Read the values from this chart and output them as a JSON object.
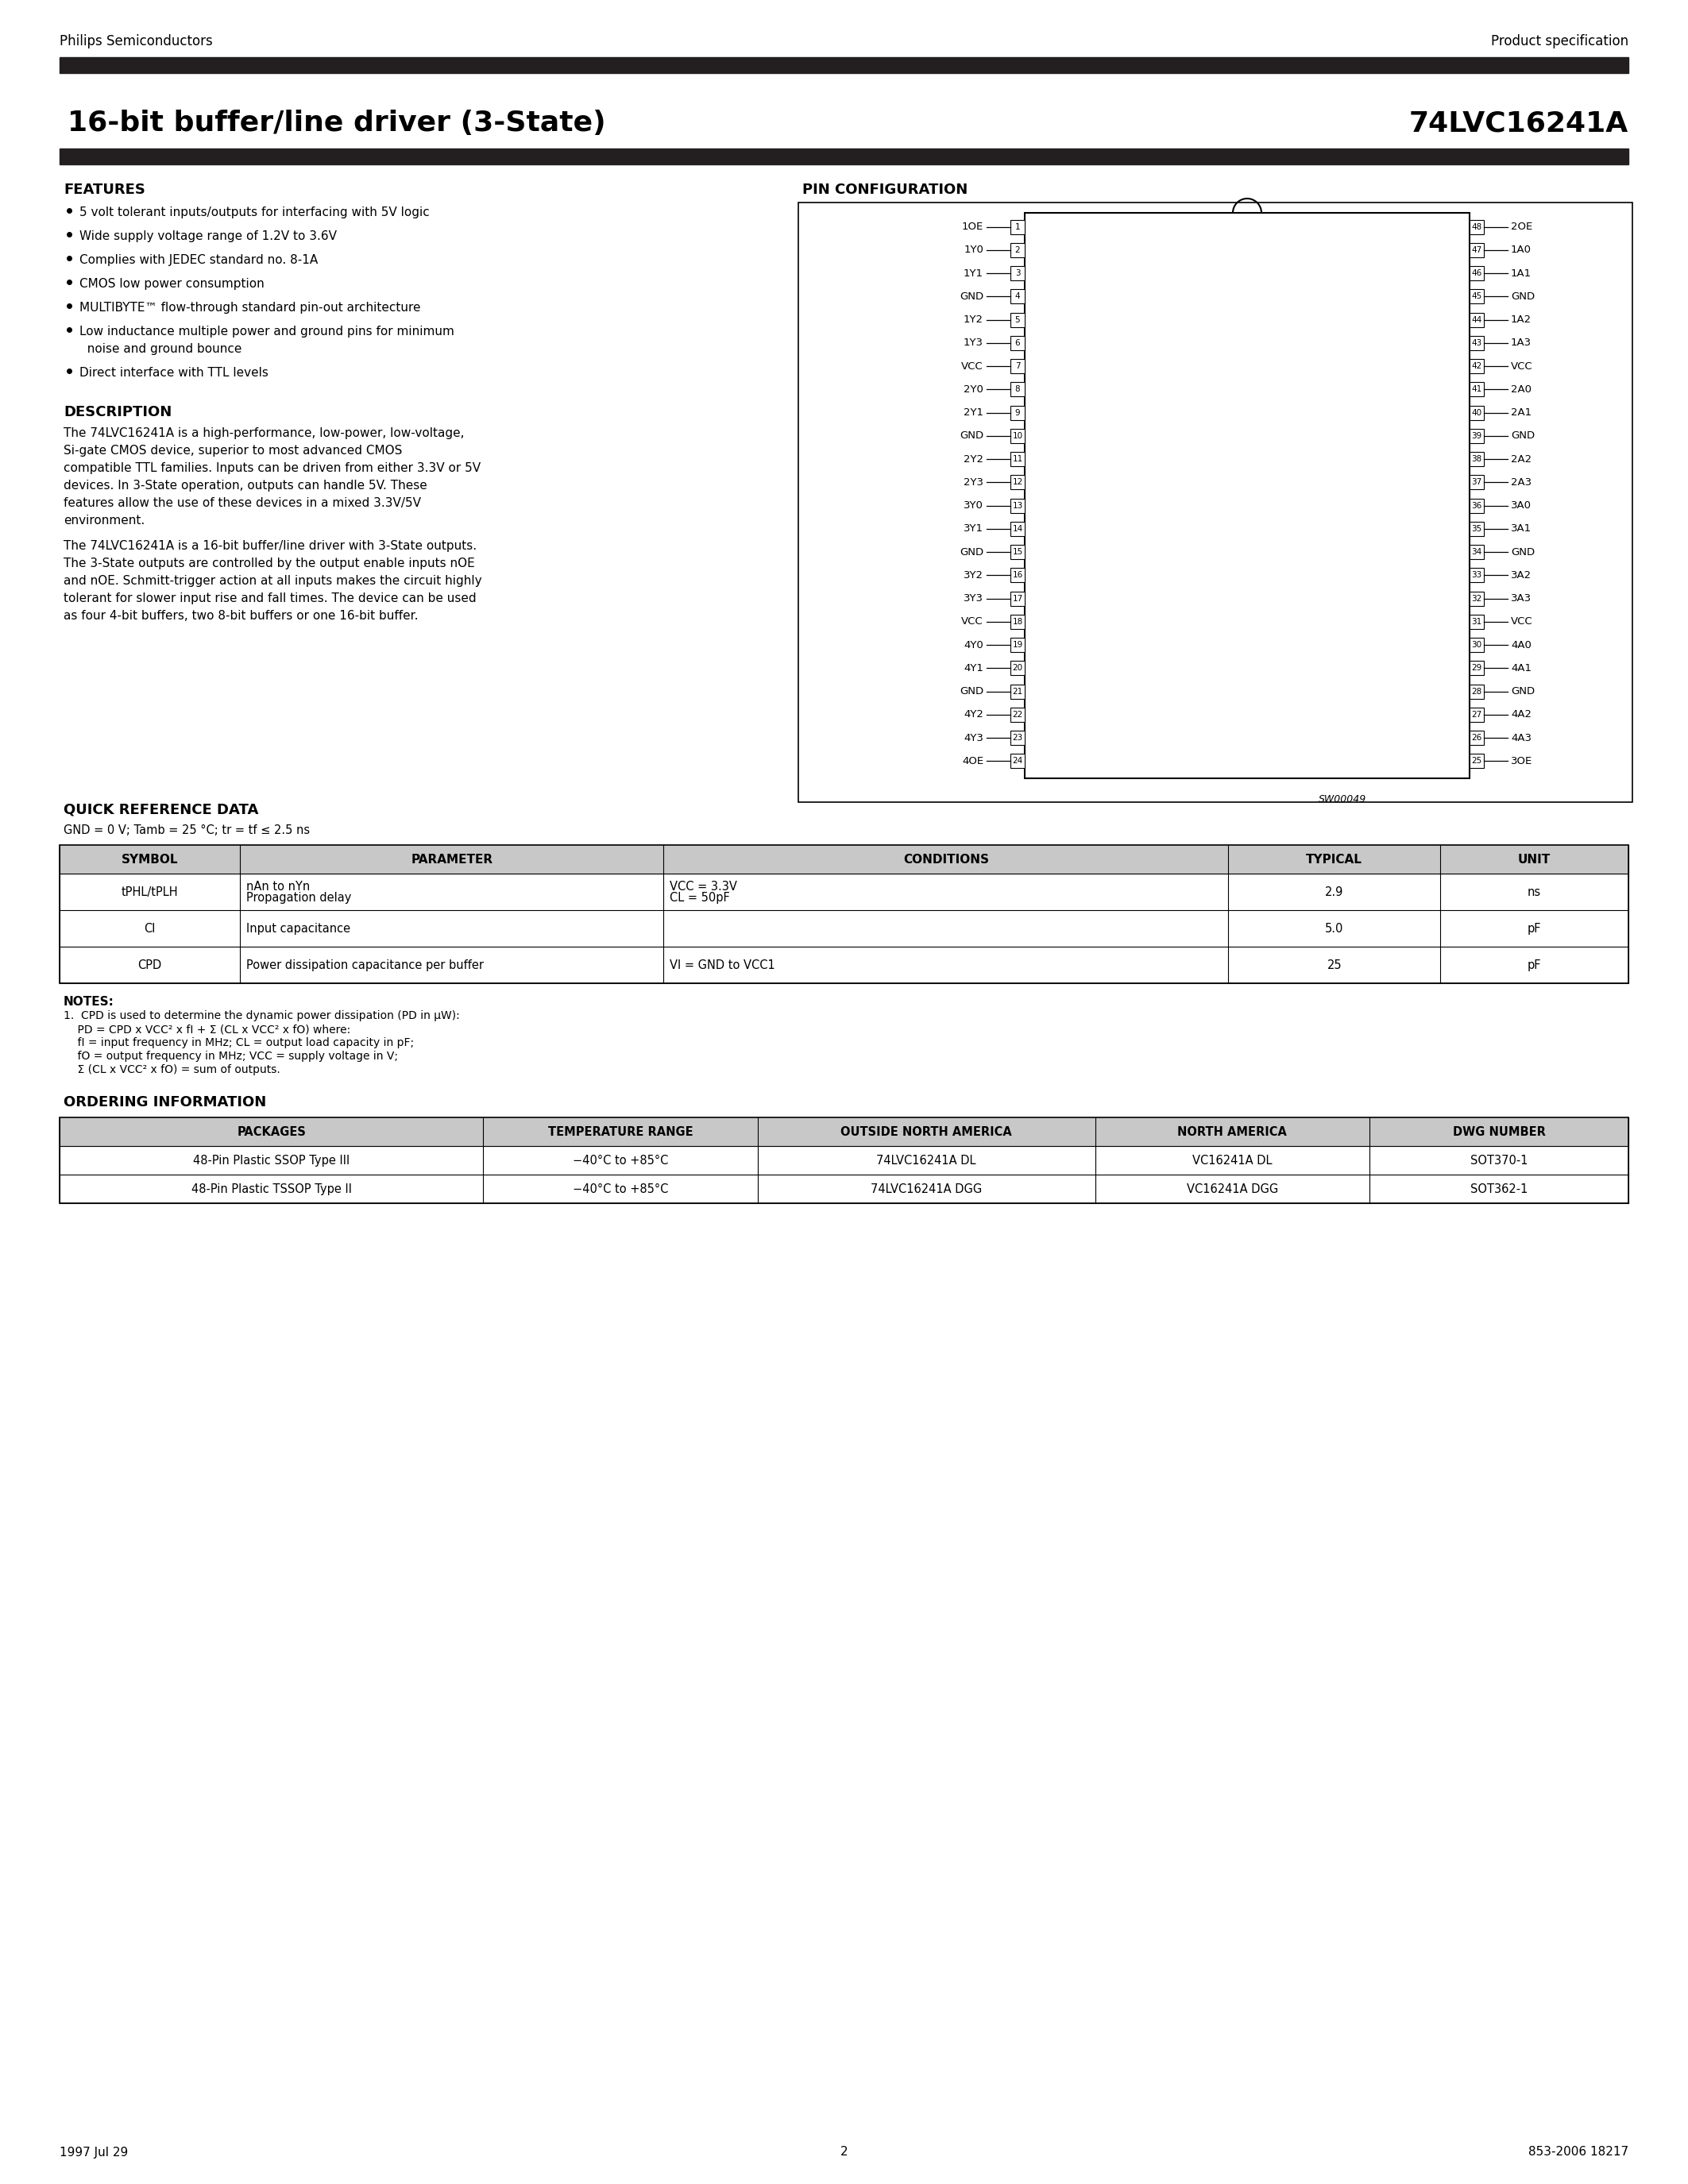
{
  "page_bg": "#ffffff",
  "header_left": "Philips Semiconductors",
  "header_right": "Product specification",
  "title_left": "16-bit buffer/line driver (3-State)",
  "title_right": "74LVC16241A",
  "black_bar_color": "#231f20",
  "footer_left": "1997 Jul 29",
  "footer_center": "2",
  "footer_right": "853-2006 18217",
  "features_title": "FEATURES",
  "features_bullets": [
    "5 volt tolerant inputs/outputs for interfacing with 5V logic",
    "Wide supply voltage range of 1.2V to 3.6V",
    "Complies with JEDEC standard no. 8-1A",
    "CMOS low power consumption",
    "MULTIBYTE™ flow-through standard pin-out architecture",
    "Low inductance multiple power and ground pins for minimum\n  noise and ground bounce",
    "Direct interface with TTL levels"
  ],
  "description_title": "DESCRIPTION",
  "description_text1": "The 74LVC16241A is a high-performance, low-power, low-voltage,\nSi-gate CMOS device, superior to most advanced CMOS\ncompatible TTL families. Inputs can be driven from either 3.3V or 5V\ndevices. In 3-State operation, outputs can handle 5V. These\nfeatures allow the use of these devices in a mixed 3.3V/5V\nenvironment.",
  "description_text2": "The 74LVC16241A is a 16-bit buffer/line driver with 3-State outputs.\nThe 3-State outputs are controlled by the output enable inputs nOE\nand nOE. Schmitt-trigger action at all inputs makes the circuit highly\ntolerant for slower input rise and fall times. The device can be used\nas four 4-bit buffers, two 8-bit buffers or one 16-bit buffer.",
  "pin_config_title": "PIN CONFIGURATION",
  "left_pins": [
    [
      "1OE",
      "1"
    ],
    [
      "1Y0",
      "2"
    ],
    [
      "1Y1",
      "3"
    ],
    [
      "GND",
      "4"
    ],
    [
      "1Y2",
      "5"
    ],
    [
      "1Y3",
      "6"
    ],
    [
      "VCC",
      "7"
    ],
    [
      "2Y0",
      "8"
    ],
    [
      "2Y1",
      "9"
    ],
    [
      "GND",
      "10"
    ],
    [
      "2Y2",
      "11"
    ],
    [
      "2Y3",
      "12"
    ],
    [
      "3Y0",
      "13"
    ],
    [
      "3Y1",
      "14"
    ],
    [
      "GND",
      "15"
    ],
    [
      "3Y2",
      "16"
    ],
    [
      "3Y3",
      "17"
    ],
    [
      "VCC",
      "18"
    ],
    [
      "4Y0",
      "19"
    ],
    [
      "4Y1",
      "20"
    ],
    [
      "GND",
      "21"
    ],
    [
      "4Y2",
      "22"
    ],
    [
      "4Y3",
      "23"
    ],
    [
      "4OE",
      "24"
    ]
  ],
  "right_pins": [
    [
      "2OE",
      "48"
    ],
    [
      "1A0",
      "47"
    ],
    [
      "1A1",
      "46"
    ],
    [
      "GND",
      "45"
    ],
    [
      "1A2",
      "44"
    ],
    [
      "1A3",
      "43"
    ],
    [
      "VCC",
      "42"
    ],
    [
      "2A0",
      "41"
    ],
    [
      "2A1",
      "40"
    ],
    [
      "GND",
      "39"
    ],
    [
      "2A2",
      "38"
    ],
    [
      "2A3",
      "37"
    ],
    [
      "3A0",
      "36"
    ],
    [
      "3A1",
      "35"
    ],
    [
      "GND",
      "34"
    ],
    [
      "3A2",
      "33"
    ],
    [
      "3A3",
      "32"
    ],
    [
      "VCC",
      "31"
    ],
    [
      "4A0",
      "30"
    ],
    [
      "4A1",
      "29"
    ],
    [
      "GND",
      "28"
    ],
    [
      "4A2",
      "27"
    ],
    [
      "4A3",
      "26"
    ],
    [
      "3OE",
      "25"
    ]
  ],
  "sw_label": "SW00049",
  "quick_ref_title": "QUICK REFERENCE DATA",
  "quick_ref_subtitle": "GND = 0 V; Tamb = 25 °C; tr = tf ≤ 2.5 ns",
  "table_headers": [
    "SYMBOL",
    "PARAMETER",
    "CONDITIONS",
    "TYPICAL",
    "UNIT"
  ],
  "table_rows": [
    [
      "tPHL/tPLH",
      "Propagation delay\nnAn to nYn",
      "CL = 50pF\nVCC = 3.3V",
      "2.9",
      "ns"
    ],
    [
      "CI",
      "Input capacitance",
      "",
      "5.0",
      "pF"
    ],
    [
      "CPD",
      "Power dissipation capacitance per buffer",
      "VI = GND to VCC1",
      "25",
      "pF"
    ]
  ],
  "notes_title": "NOTES:",
  "notes_lines": [
    "1.  CPD is used to determine the dynamic power dissipation (PD in μW):",
    "    PD = CPD x VCC² x fI + Σ (CL x VCC² x fO) where:",
    "    fI = input frequency in MHz; CL = output load capacity in pF;",
    "    fO = output frequency in MHz; VCC = supply voltage in V;",
    "    Σ (CL x VCC² x fO) = sum of outputs."
  ],
  "ordering_title": "ORDERING INFORMATION",
  "ordering_headers": [
    "PACKAGES",
    "TEMPERATURE RANGE",
    "OUTSIDE NORTH AMERICA",
    "NORTH AMERICA",
    "DWG NUMBER"
  ],
  "ordering_rows": [
    [
      "48-Pin Plastic SSOP Type III",
      "−40°C to +85°C",
      "74LVC16241A DL",
      "VC16241A DL",
      "SOT370-1"
    ],
    [
      "48-Pin Plastic TSSOP Type II",
      "−40°C to +85°C",
      "74LVC16241A DGG",
      "VC16241A DGG",
      "SOT362-1"
    ]
  ]
}
